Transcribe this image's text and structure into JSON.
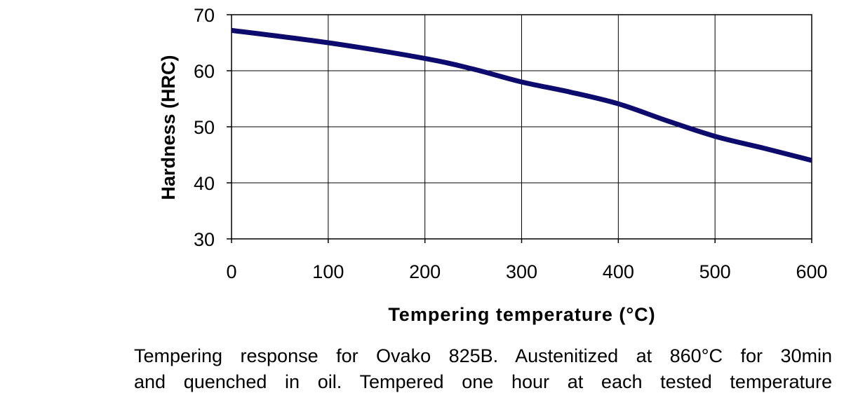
{
  "chart_data": {
    "type": "line",
    "title": "",
    "xlabel": "Tempering temperature (°C)",
    "ylabel": "Hardness (HRC)",
    "xlim": [
      0,
      600
    ],
    "ylim": [
      30,
      70
    ],
    "x_ticks": [
      "0",
      "100",
      "200",
      "300",
      "400",
      "500",
      "600"
    ],
    "y_ticks": [
      "30",
      "40",
      "50",
      "60",
      "70"
    ],
    "grid": true,
    "legend": "none",
    "series": [
      {
        "color": "#0d0b6e",
        "x": [
          0,
          100,
          200,
          250,
          300,
          350,
          400,
          450,
          500,
          550,
          600
        ],
        "y": [
          67.2,
          65.0,
          62.2,
          60.3,
          58.0,
          56.2,
          54.1,
          51.1,
          48.3,
          46.2,
          44.0
        ]
      }
    ]
  },
  "caption": {
    "line1": "Tempering response for Ovako 825B. Austenitized at 860°C for 30min",
    "line2": "and quenched in oil. Tempered one hour at each tested temperature"
  }
}
